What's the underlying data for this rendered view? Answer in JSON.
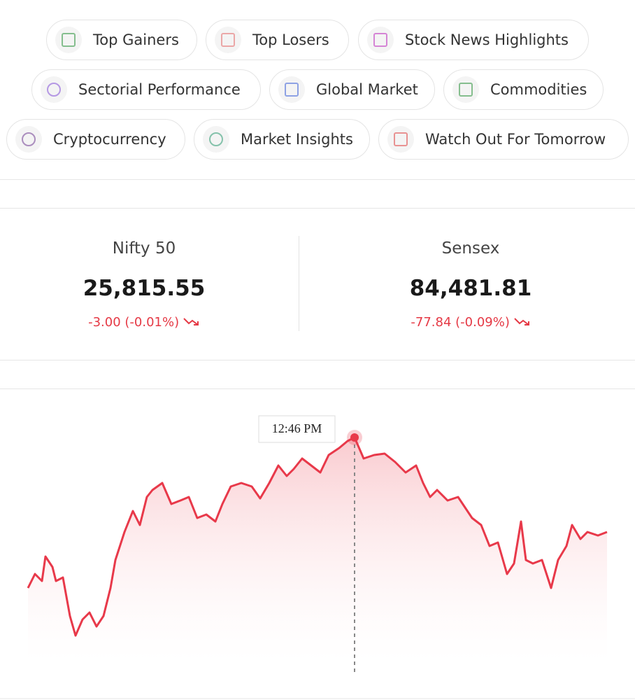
{
  "chips": [
    "Top Gainers",
    "Top Losers",
    "Stock News Highlights",
    "Sectorial Performance",
    "Global Market",
    "Commodities",
    "Cryptocurrency",
    "Market Insights",
    "Watch Out For Tomorrow"
  ],
  "indices": [
    {
      "name": "Nifty 50",
      "value": "25,815.55",
      "change": "-3.00 (-0.01%)"
    },
    {
      "name": "Sensex",
      "value": "84,481.81",
      "change": "-77.84 (-0.09%)"
    }
  ],
  "chart": {
    "tooltip": "12:46 PM"
  }
}
